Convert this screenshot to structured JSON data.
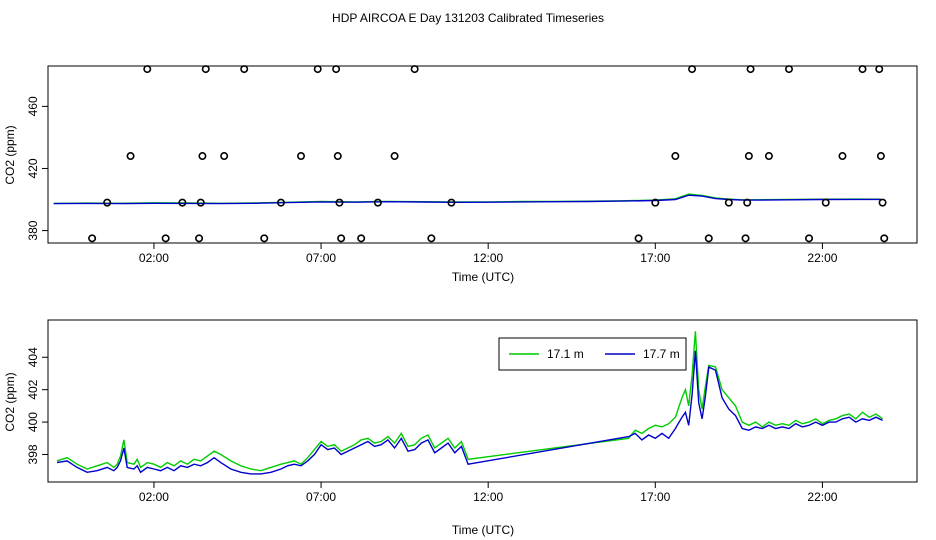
{
  "title": "HDP AIRCOA E  Day 131203  Calibrated Timeseries",
  "colors": {
    "green": "#00cc00",
    "blue": "#0000cc"
  },
  "chart_data": [
    {
      "type": "scatter+line",
      "xlabel": "Time (UTC)",
      "ylabel": "CO2 (ppm)",
      "xticks": [
        {
          "label": "02:00",
          "value": 2
        },
        {
          "label": "07:00",
          "value": 7
        },
        {
          "label": "12:00",
          "value": 12
        },
        {
          "label": "17:00",
          "value": 17
        },
        {
          "label": "22:00",
          "value": 22
        }
      ],
      "yticks": [
        {
          "label": "380",
          "value": 380
        },
        {
          "label": "420",
          "value": 420
        },
        {
          "label": "460",
          "value": 460
        }
      ],
      "xlim": [
        -1.17,
        24.83
      ],
      "ylim": [
        372,
        486
      ],
      "points": [
        {
          "x": 0.15,
          "y": 375
        },
        {
          "x": 0.6,
          "y": 398
        },
        {
          "x": 1.3,
          "y": 428
        },
        {
          "x": 1.8,
          "y": 484
        },
        {
          "x": 2.35,
          "y": 375
        },
        {
          "x": 2.85,
          "y": 398
        },
        {
          "x": 3.35,
          "y": 375
        },
        {
          "x": 3.4,
          "y": 398
        },
        {
          "x": 3.45,
          "y": 428
        },
        {
          "x": 3.55,
          "y": 484
        },
        {
          "x": 4.1,
          "y": 428
        },
        {
          "x": 4.7,
          "y": 484
        },
        {
          "x": 5.3,
          "y": 375
        },
        {
          "x": 5.8,
          "y": 398
        },
        {
          "x": 6.4,
          "y": 428
        },
        {
          "x": 6.9,
          "y": 484
        },
        {
          "x": 7.45,
          "y": 484
        },
        {
          "x": 7.5,
          "y": 428
        },
        {
          "x": 7.55,
          "y": 398
        },
        {
          "x": 7.6,
          "y": 375
        },
        {
          "x": 8.2,
          "y": 375
        },
        {
          "x": 8.7,
          "y": 398
        },
        {
          "x": 9.2,
          "y": 428
        },
        {
          "x": 9.8,
          "y": 484
        },
        {
          "x": 10.3,
          "y": 375
        },
        {
          "x": 10.9,
          "y": 398
        },
        {
          "x": 16.5,
          "y": 375
        },
        {
          "x": 17.0,
          "y": 398
        },
        {
          "x": 17.6,
          "y": 428
        },
        {
          "x": 18.1,
          "y": 484
        },
        {
          "x": 18.6,
          "y": 375
        },
        {
          "x": 19.2,
          "y": 398
        },
        {
          "x": 19.7,
          "y": 375
        },
        {
          "x": 19.75,
          "y": 398
        },
        {
          "x": 19.8,
          "y": 428
        },
        {
          "x": 19.85,
          "y": 484
        },
        {
          "x": 20.4,
          "y": 428
        },
        {
          "x": 21.0,
          "y": 484
        },
        {
          "x": 21.6,
          "y": 375
        },
        {
          "x": 22.1,
          "y": 398
        },
        {
          "x": 22.6,
          "y": 428
        },
        {
          "x": 23.2,
          "y": 484
        },
        {
          "x": 23.7,
          "y": 484
        },
        {
          "x": 23.75,
          "y": 428
        },
        {
          "x": 23.8,
          "y": 398
        },
        {
          "x": 23.85,
          "y": 375
        }
      ],
      "series": [
        {
          "color": "#00cc00",
          "x": [
            -1,
            0,
            1,
            2,
            3,
            4,
            5,
            6,
            7,
            8,
            9,
            10,
            11,
            12,
            13,
            14,
            15,
            16,
            17,
            17.6,
            18,
            18.4,
            18.8,
            19.2,
            19.6,
            20,
            21,
            22,
            23,
            23.75
          ],
          "y": [
            397.5,
            397.7,
            397.6,
            397.9,
            397.8,
            397.6,
            397.8,
            398.2,
            398.7,
            398.5,
            398.8,
            398.6,
            398.4,
            398.5,
            398.7,
            398.8,
            398.9,
            399.2,
            399.6,
            400.5,
            403.5,
            402.6,
            401.0,
            400.3,
            399.8,
            399.8,
            400.0,
            400.2,
            400.3,
            400.2
          ]
        },
        {
          "color": "#0000cc",
          "x": [
            -1,
            0,
            1,
            2,
            3,
            4,
            5,
            6,
            7,
            8,
            9,
            10,
            11,
            12,
            13,
            14,
            15,
            16,
            17,
            17.6,
            18,
            18.4,
            18.8,
            19.2,
            19.6,
            20,
            21,
            22,
            23,
            23.75
          ],
          "y": [
            397.4,
            397.5,
            397.4,
            397.6,
            397.5,
            397.4,
            397.6,
            398.0,
            398.5,
            398.3,
            398.6,
            398.4,
            398.2,
            398.3,
            398.5,
            398.6,
            398.7,
            399.0,
            399.4,
            400.0,
            402.8,
            402.2,
            400.6,
            400.0,
            399.6,
            399.6,
            399.8,
            400.0,
            400.1,
            400.1
          ]
        }
      ]
    },
    {
      "type": "line",
      "xlabel": "Time (UTC)",
      "ylabel": "CO2 (ppm)",
      "xticks": [
        {
          "label": "02:00",
          "value": 2
        },
        {
          "label": "07:00",
          "value": 7
        },
        {
          "label": "12:00",
          "value": 12
        },
        {
          "label": "17:00",
          "value": 17
        },
        {
          "label": "22:00",
          "value": 22
        }
      ],
      "yticks": [
        {
          "label": "398",
          "value": 398
        },
        {
          "label": "400",
          "value": 400
        },
        {
          "label": "402",
          "value": 402
        },
        {
          "label": "404",
          "value": 404
        }
      ],
      "xlim": [
        -1.17,
        24.83
      ],
      "ylim": [
        396.3,
        406.3
      ],
      "legend": {
        "position": "top-right"
      },
      "series": [
        {
          "name": "17.1 m",
          "color": "#00cc00",
          "x": [
            -0.9,
            -0.6,
            -0.3,
            0.0,
            0.3,
            0.6,
            0.8,
            0.9,
            1.0,
            1.1,
            1.2,
            1.4,
            1.5,
            1.6,
            1.8,
            2.0,
            2.2,
            2.4,
            2.6,
            2.8,
            3.0,
            3.2,
            3.4,
            3.6,
            3.8,
            4.0,
            4.3,
            4.6,
            4.9,
            5.2,
            5.5,
            5.8,
            6.0,
            6.2,
            6.4,
            6.6,
            6.8,
            7.0,
            7.2,
            7.4,
            7.6,
            7.8,
            8.0,
            8.2,
            8.4,
            8.6,
            8.8,
            9.0,
            9.2,
            9.4,
            9.6,
            9.8,
            10.0,
            10.2,
            10.4,
            10.6,
            10.8,
            11.0,
            11.2,
            11.4,
            16.2,
            16.4,
            16.6,
            16.8,
            17.0,
            17.2,
            17.4,
            17.6,
            17.8,
            17.9,
            18.0,
            18.1,
            18.2,
            18.3,
            18.4,
            18.5,
            18.6,
            18.8,
            19.0,
            19.2,
            19.4,
            19.6,
            19.8,
            20.0,
            20.2,
            20.4,
            20.6,
            20.8,
            21.0,
            21.2,
            21.4,
            21.6,
            21.8,
            22.0,
            22.2,
            22.4,
            22.6,
            22.8,
            23.0,
            23.2,
            23.4,
            23.6,
            23.8
          ],
          "y": [
            397.6,
            397.8,
            397.4,
            397.1,
            397.3,
            397.5,
            397.2,
            397.4,
            397.9,
            398.9,
            397.5,
            397.4,
            397.7,
            397.2,
            397.5,
            397.4,
            397.2,
            397.5,
            397.3,
            397.6,
            397.4,
            397.7,
            397.6,
            397.9,
            398.2,
            398.0,
            397.6,
            397.3,
            397.1,
            397.0,
            397.2,
            397.4,
            397.5,
            397.6,
            397.4,
            397.8,
            398.3,
            398.8,
            398.5,
            398.6,
            398.2,
            398.4,
            398.6,
            398.9,
            399.0,
            398.7,
            398.8,
            399.1,
            398.7,
            399.3,
            398.5,
            398.6,
            399.0,
            399.2,
            398.4,
            398.7,
            399.0,
            398.4,
            398.8,
            397.7,
            399.0,
            399.5,
            399.3,
            399.6,
            399.8,
            399.7,
            399.9,
            400.3,
            401.5,
            402.0,
            401.0,
            402.9,
            405.6,
            402.0,
            400.8,
            402.2,
            403.5,
            403.4,
            402.0,
            401.5,
            401.0,
            400.0,
            399.8,
            400.0,
            399.7,
            400.0,
            399.8,
            399.9,
            399.8,
            400.1,
            399.9,
            400.0,
            400.2,
            399.9,
            400.1,
            400.2,
            400.4,
            400.5,
            400.2,
            400.6,
            400.3,
            400.5,
            400.2
          ]
        },
        {
          "name": "17.7 m",
          "color": "#0000cc",
          "x": [
            -0.9,
            -0.6,
            -0.3,
            0.0,
            0.3,
            0.6,
            0.8,
            0.9,
            1.0,
            1.1,
            1.2,
            1.4,
            1.5,
            1.6,
            1.8,
            2.0,
            2.2,
            2.4,
            2.6,
            2.8,
            3.0,
            3.2,
            3.4,
            3.6,
            3.8,
            4.0,
            4.3,
            4.6,
            4.9,
            5.2,
            5.5,
            5.8,
            6.0,
            6.2,
            6.4,
            6.6,
            6.8,
            7.0,
            7.2,
            7.4,
            7.6,
            7.8,
            8.0,
            8.2,
            8.4,
            8.6,
            8.8,
            9.0,
            9.2,
            9.4,
            9.6,
            9.8,
            10.0,
            10.2,
            10.4,
            10.6,
            10.8,
            11.0,
            11.2,
            11.4,
            16.2,
            16.4,
            16.6,
            16.8,
            17.0,
            17.2,
            17.4,
            17.6,
            17.8,
            17.9,
            18.0,
            18.1,
            18.2,
            18.3,
            18.4,
            18.5,
            18.6,
            18.8,
            19.0,
            19.2,
            19.4,
            19.6,
            19.8,
            20.0,
            20.2,
            20.4,
            20.6,
            20.8,
            21.0,
            21.2,
            21.4,
            21.6,
            21.8,
            22.0,
            22.2,
            22.4,
            22.6,
            22.8,
            23.0,
            23.2,
            23.4,
            23.6,
            23.8
          ],
          "y": [
            397.5,
            397.6,
            397.2,
            396.9,
            397.0,
            397.2,
            397.0,
            397.2,
            397.6,
            398.4,
            397.2,
            397.1,
            397.3,
            396.9,
            397.2,
            397.1,
            397.0,
            397.2,
            397.0,
            397.3,
            397.2,
            397.4,
            397.3,
            397.5,
            397.8,
            397.5,
            397.1,
            396.9,
            396.8,
            396.8,
            396.9,
            397.1,
            397.3,
            397.4,
            397.3,
            397.6,
            398.0,
            398.6,
            398.3,
            398.4,
            398.0,
            398.2,
            398.4,
            398.6,
            398.8,
            398.5,
            398.6,
            398.9,
            398.4,
            399.0,
            398.2,
            398.3,
            398.7,
            398.9,
            398.1,
            398.4,
            398.7,
            398.1,
            398.5,
            397.4,
            399.1,
            399.3,
            398.9,
            399.2,
            399.0,
            399.3,
            399.0,
            399.6,
            400.3,
            400.6,
            399.8,
            401.7,
            404.4,
            401.2,
            400.2,
            401.6,
            403.4,
            403.2,
            401.5,
            400.8,
            400.4,
            399.6,
            399.5,
            399.7,
            399.6,
            399.8,
            399.6,
            399.7,
            399.6,
            399.9,
            399.7,
            399.8,
            400.0,
            399.8,
            400.0,
            400.0,
            400.2,
            400.3,
            400.0,
            400.2,
            400.1,
            400.3,
            400.1
          ]
        }
      ]
    }
  ]
}
